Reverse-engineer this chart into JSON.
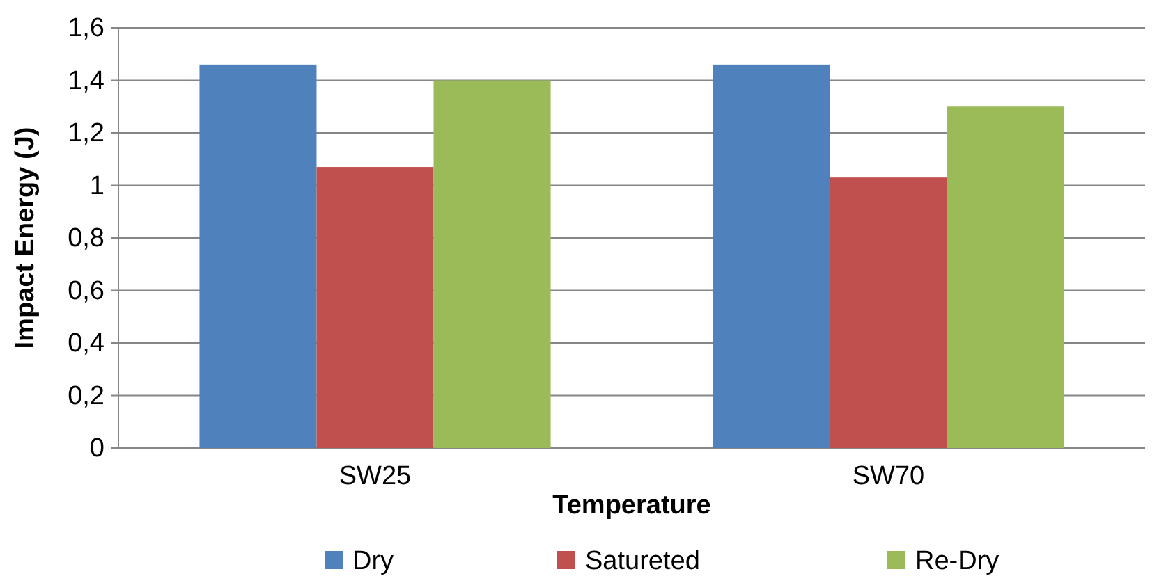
{
  "chart_data": {
    "type": "bar",
    "xlabel": "Temperature",
    "ylabel": "Impact Energy (J)",
    "categories": [
      "SW25",
      "SW70"
    ],
    "series": [
      {
        "name": "Dry",
        "color": "#4f81bd",
        "values": [
          1.46,
          1.46
        ]
      },
      {
        "name": "Satureted",
        "color": "#c0504d",
        "values": [
          1.07,
          1.03
        ]
      },
      {
        "name": "Re-Dry",
        "color": "#9bbb59",
        "values": [
          1.4,
          1.3
        ]
      }
    ],
    "ylim": [
      0,
      1.6
    ],
    "yticks": [
      0,
      {
        "value": 0.2,
        "label": "0,2"
      },
      {
        "value": 0.4,
        "label": "0,4"
      },
      {
        "value": 0.6,
        "label": "0,6"
      },
      {
        "value": 0.8,
        "label": "0,8"
      },
      1,
      {
        "value": 1.2,
        "label": "1,2"
      },
      {
        "value": 1.4,
        "label": "1,4"
      },
      {
        "value": 1.6,
        "label": "1,6"
      }
    ],
    "grid": "y",
    "legend": "bottom"
  }
}
